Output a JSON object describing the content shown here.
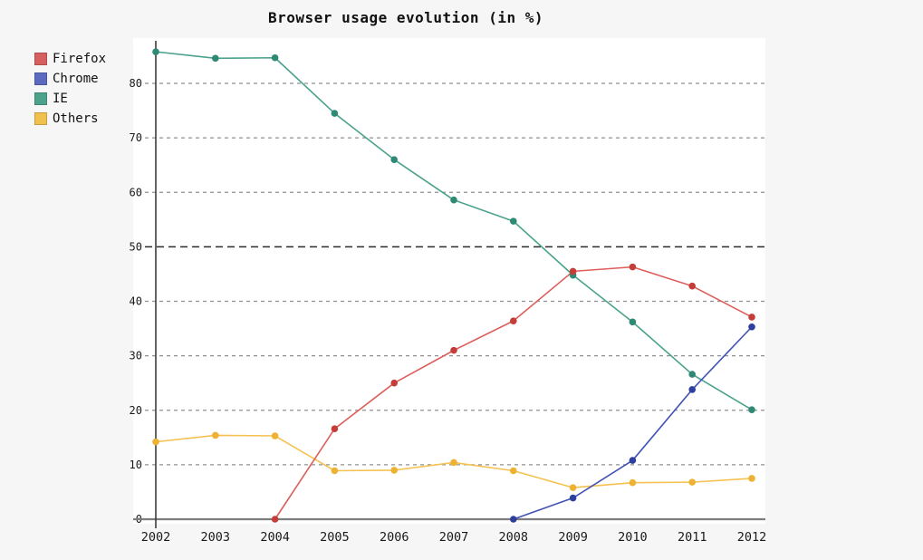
{
  "chart_data": {
    "type": "line",
    "title": "Browser usage evolution (in %)",
    "categories": [
      "2002",
      "2003",
      "2004",
      "2005",
      "2006",
      "2007",
      "2008",
      "2009",
      "2010",
      "2011",
      "2012"
    ],
    "series": [
      {
        "name": "Firefox",
        "legend_color": "#d65f5f",
        "line_color": "#dd5e5a",
        "marker_color": "#c43d39",
        "values": [
          null,
          null,
          0,
          16.6,
          25,
          31,
          36.4,
          45.5,
          46.3,
          42.8,
          37.1
        ]
      },
      {
        "name": "Chrome",
        "legend_color": "#5b6abf",
        "line_color": "#4153b4",
        "marker_color": "#2f3f9e",
        "values": [
          null,
          null,
          null,
          null,
          null,
          null,
          0,
          3.9,
          10.8,
          23.8,
          35.3
        ]
      },
      {
        "name": "IE",
        "legend_color": "#4da28c",
        "line_color": "#4aa28c",
        "marker_color": "#2e8a74",
        "values": [
          85.8,
          84.6,
          84.7,
          74.5,
          66.0,
          58.6,
          54.7,
          44.8,
          36.2,
          26.6,
          20.1
        ]
      },
      {
        "name": "Others",
        "legend_color": "#f0c14e",
        "line_color": "#f5c150",
        "marker_color": "#edb232",
        "values": [
          14.2,
          15.4,
          15.3,
          8.9,
          9.0,
          10.4,
          8.9,
          5.8,
          6.7,
          6.8,
          7.5
        ]
      }
    ],
    "y_ticks": [
      0,
      10,
      20,
      30,
      40,
      50,
      60,
      70,
      80
    ],
    "ylim": [
      0,
      88
    ],
    "xlabel": "",
    "ylabel": "",
    "grid": "horizontal-dashed",
    "emphasized_gridline": 50,
    "legend_position": "upper-left"
  },
  "colors": {
    "page_background": "#f6f6f7",
    "plot_background": "#ffffff",
    "grid_line": "#909090",
    "emphasized_grid_line": "#2b2b2b",
    "x_axis_line": "#7d7d7d",
    "y_axis_line": "#3c3c3c",
    "text": "#1a1a1a"
  }
}
